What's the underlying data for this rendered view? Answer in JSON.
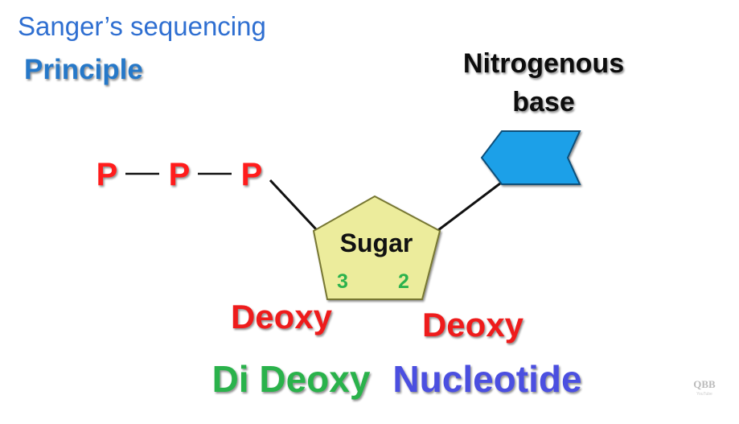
{
  "header": {
    "title": "Sanger’s sequencing",
    "subtitle": "Principle"
  },
  "diagram": {
    "phosphates": [
      "P",
      "P",
      "P"
    ],
    "sugar": {
      "label": "Sugar",
      "carbon_left": "3",
      "carbon_right": "2"
    },
    "base": {
      "label_line1": "Nitrogenous",
      "label_line2": "base"
    },
    "deoxy_left": "Deoxy",
    "deoxy_right": "Deoxy"
  },
  "footer": {
    "part1": "Di Deoxy",
    "part2": "Nucleotide"
  },
  "watermark": {
    "logo_text": "QBB",
    "logo_subtext": "YouTube"
  },
  "colors": {
    "title_blue": "#2f6fd1",
    "subtitle_blue": "#2778c8",
    "phosphate_red": "#ff1a1a",
    "deoxy_red": "#ee1c1c",
    "sugar_fill": "#ecec9c",
    "carbon_green": "#2bb24c",
    "base_fill": "#1ea0e8",
    "footer_green": "#2bb24c",
    "footer_blue": "#4b4fe0"
  }
}
